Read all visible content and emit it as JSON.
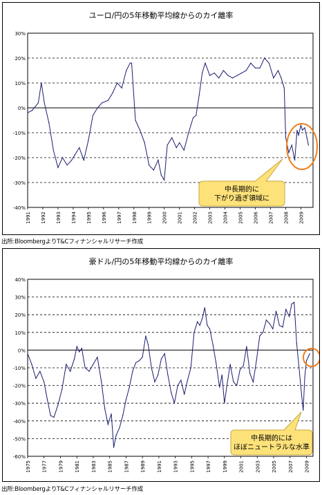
{
  "charts": [
    {
      "title": "ユーロ/円の5年移動平均線からのカイ離率",
      "source": "出所:BloombergよりT&Cフィナンシャルリサーチ作成",
      "callout": [
        "中長期的に",
        "下がり過ぎ領域に"
      ],
      "ticks_y": [
        "30%",
        "20%",
        "10%",
        "0%",
        "-10%",
        "-20%",
        "-30%",
        "-40%"
      ],
      "ticks_x": [
        "1991",
        "1992",
        "1993",
        "1994",
        "1995",
        "1996",
        "1997",
        "1998",
        "1999",
        "2000",
        "2001",
        "2002",
        "2003",
        "2004",
        "2005",
        "2006",
        "2007",
        "2008",
        "2009"
      ]
    },
    {
      "title": "豪ドル/円の5年移動平均線からのカイ離率",
      "source": "出所:BloombergよりT&Cフィナンシャルリサーチ作成",
      "callout": [
        "中長期的には",
        "ほぼニュートラルな水準"
      ],
      "ticks_y": [
        "40%",
        "30%",
        "20%",
        "10%",
        "0%",
        "-10%",
        "-20%",
        "-30%",
        "-40%",
        "-50%",
        "-60%"
      ],
      "ticks_x": [
        "1975",
        "1977",
        "1979",
        "1981",
        "1983",
        "1985",
        "1987",
        "1989",
        "1991",
        "1993",
        "1995",
        "1997",
        "1999",
        "2001",
        "2003",
        "2005",
        "2007",
        "2009"
      ]
    }
  ],
  "chart_data": [
    {
      "type": "line",
      "title": "ユーロ/円の5年移動平均線からのカイ離率",
      "ylim": [
        -40,
        30
      ],
      "xlim": [
        1991,
        2009.8
      ],
      "grid": true,
      "series": [
        {
          "x": [
            1991.0,
            1991.3,
            1991.7,
            1991.9,
            1992.1,
            1992.4,
            1992.7,
            1993.0,
            1993.3,
            1993.6,
            1993.9,
            1994.1,
            1994.4,
            1994.7,
            1995.0,
            1995.3,
            1995.6,
            1995.9,
            1996.3,
            1996.6,
            1996.9,
            1997.2,
            1997.5,
            1997.75,
            1997.85,
            1998.1,
            1998.4,
            1998.7,
            1999.0,
            1999.3,
            1999.6,
            1999.8,
            2000.0,
            2000.2,
            2000.5,
            2000.8,
            2001.0,
            2001.3,
            2001.6,
            2001.9,
            2002.1,
            2002.3,
            2002.5,
            2002.7,
            2003.0,
            2003.3,
            2003.6,
            2003.9,
            2004.2,
            2004.5,
            2004.8,
            2005.1,
            2005.4,
            2005.7,
            2006.0,
            2006.3,
            2006.6,
            2006.9,
            2007.2,
            2007.5,
            2007.7,
            2007.9,
            2008.0,
            2008.2,
            2008.4,
            2008.6,
            2008.75,
            2008.85,
            2009.0,
            2009.1,
            2009.25,
            2009.4,
            2009.5
          ],
          "y": [
            -2,
            -1,
            2,
            10,
            2,
            -6,
            -17,
            -24,
            -20,
            -23,
            -21,
            -19,
            -16,
            -21,
            -13,
            -3,
            0,
            2,
            3,
            6,
            10,
            8,
            15,
            18,
            18,
            -5,
            -9,
            -14,
            -23,
            -25,
            -21,
            -27,
            -29,
            -15,
            -12,
            -16,
            -14,
            -17,
            -10,
            -4,
            -3,
            5,
            14,
            18,
            13,
            14,
            12,
            15,
            13,
            12,
            13,
            14,
            15,
            18,
            16,
            16,
            20,
            18,
            12,
            15,
            12,
            8,
            -12,
            -18,
            -15,
            -21,
            -9,
            -11,
            -7,
            -9,
            -8,
            -12,
            -15
          ]
        }
      ]
    },
    {
      "type": "line",
      "title": "豪ドル/円の5年移動平均線からのカイ離率",
      "ylim": [
        -60,
        40
      ],
      "xlim": [
        1975,
        2009.8
      ],
      "grid": true,
      "series": [
        {
          "x": [
            1975.0,
            1975.5,
            1976.0,
            1976.5,
            1977.0,
            1977.4,
            1977.8,
            1978.2,
            1978.7,
            1979.2,
            1979.7,
            1980.2,
            1980.7,
            1981.0,
            1981.3,
            1981.6,
            1982.0,
            1982.5,
            1983.0,
            1983.5,
            1984.0,
            1984.4,
            1984.8,
            1985.2,
            1985.5,
            1985.8,
            1986.2,
            1986.6,
            1987.0,
            1987.4,
            1987.8,
            1988.2,
            1988.6,
            1989.0,
            1989.4,
            1989.7,
            1990.1,
            1990.5,
            1990.9,
            1991.3,
            1991.7,
            1992.1,
            1992.5,
            1992.9,
            1993.3,
            1993.7,
            1994.1,
            1994.5,
            1994.9,
            1995.3,
            1995.7,
            1996.0,
            1996.3,
            1996.6,
            1996.9,
            1997.2,
            1997.6,
            1998.0,
            1998.4,
            1998.7,
            1999.0,
            1999.3,
            1999.7,
            2000.1,
            2000.5,
            2000.9,
            2001.3,
            2001.7,
            2002.1,
            2002.5,
            2002.9,
            2003.3,
            2003.7,
            2004.1,
            2004.5,
            2004.9,
            2005.3,
            2005.7,
            2006.1,
            2006.5,
            2006.9,
            2007.2,
            2007.5,
            2007.8,
            2008.1,
            2008.4,
            2008.6,
            2008.8,
            2009.0,
            2009.2,
            2009.4
          ],
          "y": [
            -2,
            -8,
            -16,
            -12,
            -18,
            -28,
            -37,
            -38,
            -31,
            -22,
            -8,
            -12,
            -5,
            2,
            -1,
            1,
            -10,
            -12,
            -8,
            -4,
            -18,
            -33,
            -42,
            -36,
            -55,
            -48,
            -44,
            -37,
            -28,
            -21,
            -12,
            -7,
            -6,
            -4,
            8,
            3,
            -10,
            -18,
            -14,
            -5,
            -2,
            -14,
            -24,
            -30,
            -20,
            -17,
            -25,
            -17,
            -10,
            10,
            16,
            14,
            18,
            24,
            14,
            12,
            3,
            -8,
            -21,
            -14,
            -30,
            -20,
            -8,
            -18,
            -20,
            -11,
            -9,
            2,
            -13,
            -18,
            -6,
            8,
            10,
            17,
            15,
            12,
            22,
            14,
            13,
            23,
            19,
            26,
            27,
            4,
            -10,
            -25,
            -34,
            -15,
            -6,
            -4,
            -2
          ]
        }
      ]
    }
  ]
}
